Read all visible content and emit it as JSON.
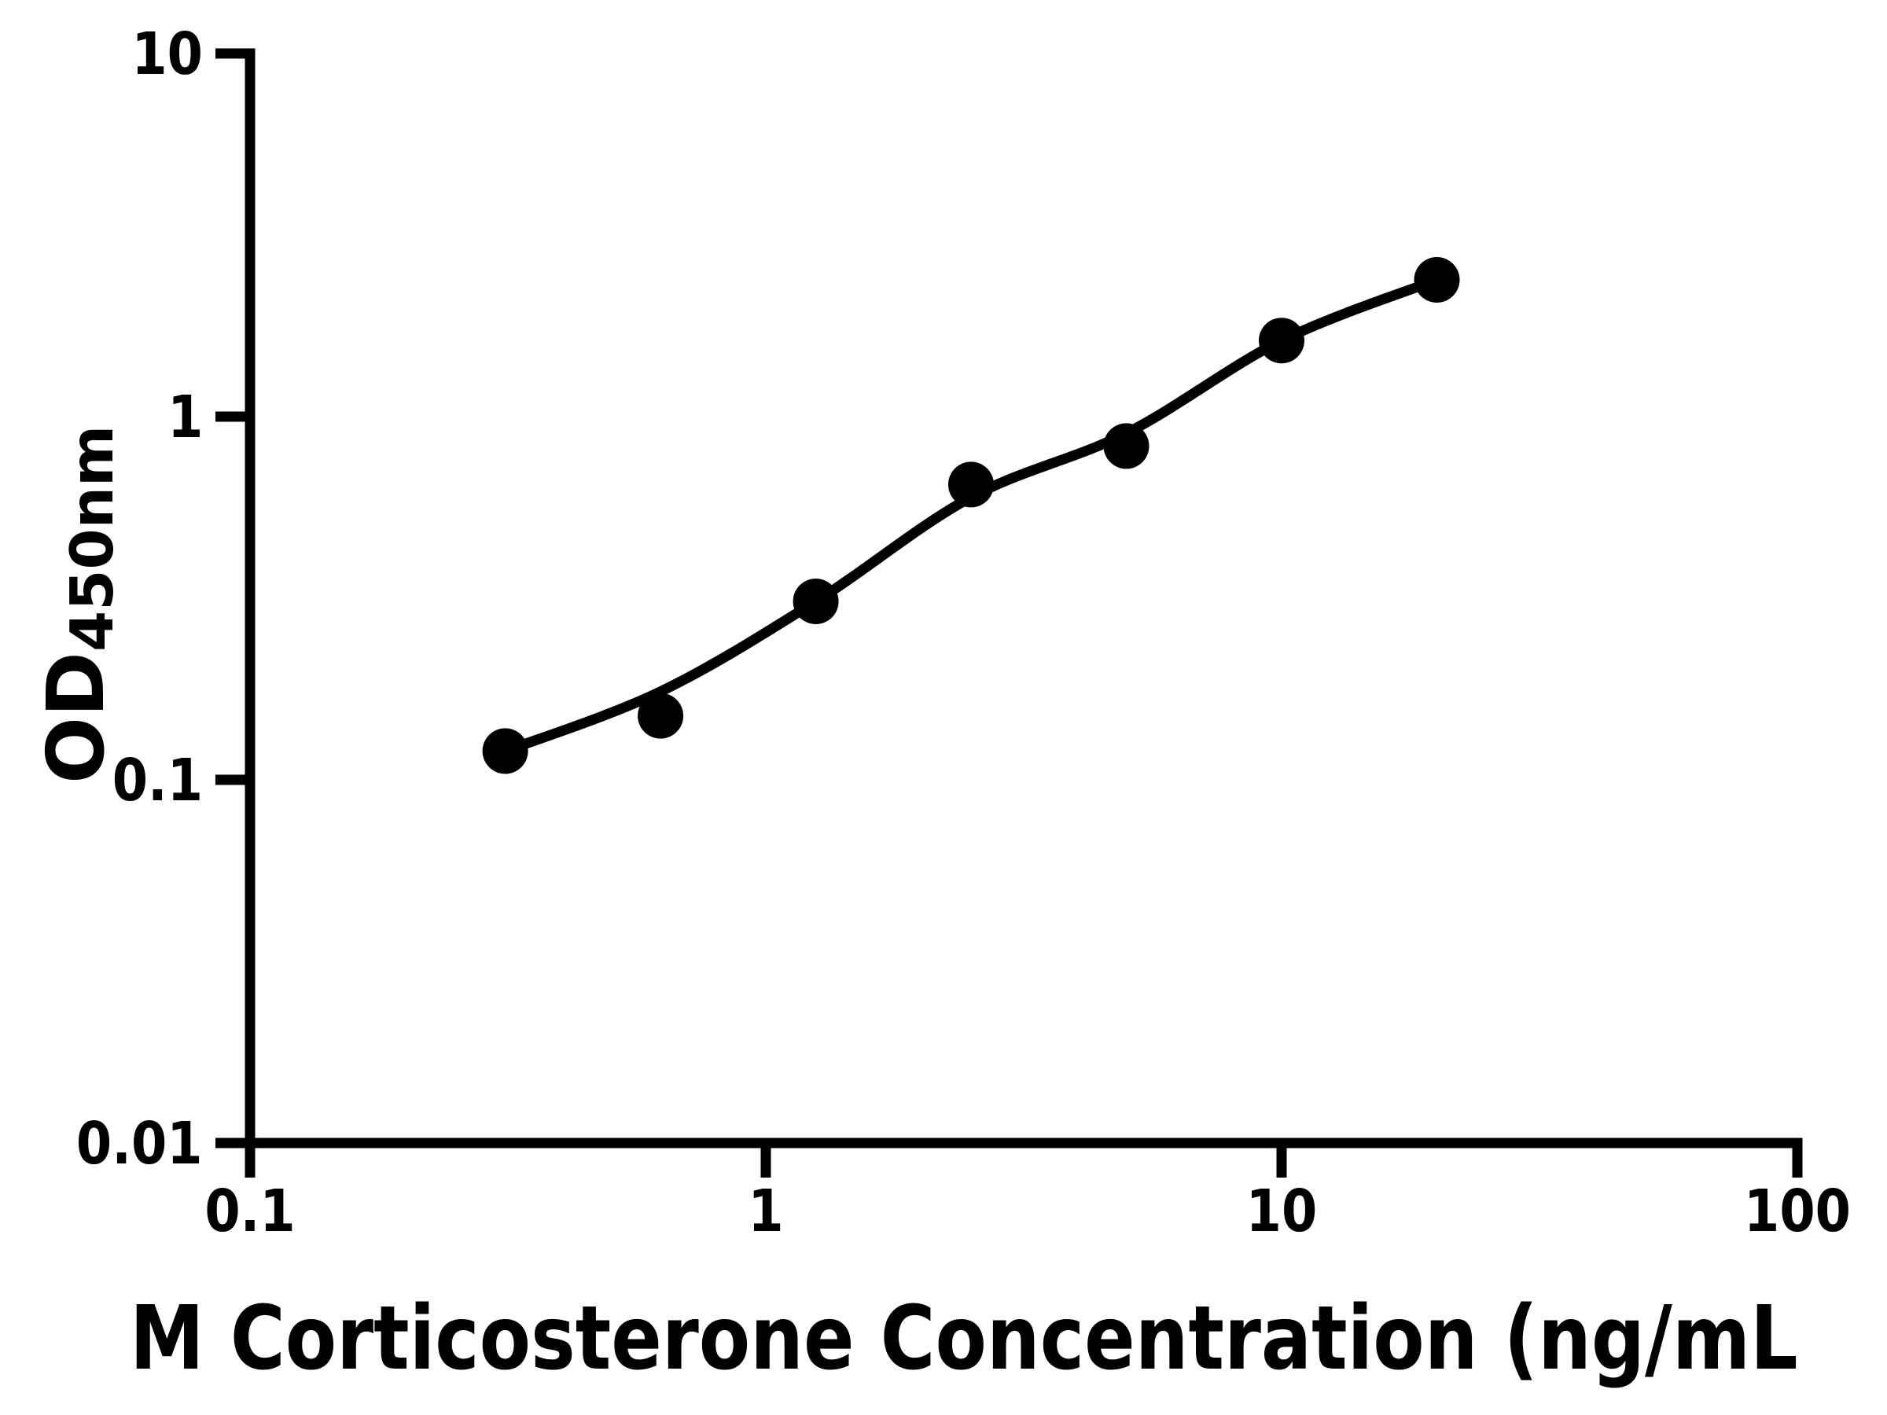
{
  "figure": {
    "background": "#ffffff",
    "ink": "#000000"
  },
  "chart_data": {
    "type": "scatter",
    "title": "",
    "xlabel": "M Corticosterone Concentration (ng/mL",
    "ylabel_main": "OD",
    "ylabel_sub": "450nm",
    "x_scale": "log",
    "y_scale": "log",
    "xlim": [
      0.1,
      100
    ],
    "ylim": [
      0.01,
      10
    ],
    "grid": false,
    "legend": "none",
    "x_ticks": [
      {
        "value": 0.1,
        "label": "0.1"
      },
      {
        "value": 1,
        "label": "1"
      },
      {
        "value": 10,
        "label": "10"
      },
      {
        "value": 100,
        "label": "100"
      }
    ],
    "y_ticks": [
      {
        "value": 0.01,
        "label": "0.01"
      },
      {
        "value": 0.1,
        "label": "0.1"
      },
      {
        "value": 1,
        "label": "1"
      },
      {
        "value": 10,
        "label": "10"
      }
    ],
    "series": [
      {
        "name": "standard-points",
        "type": "scatter",
        "marker": "circle",
        "color": "#000000",
        "points": [
          [
            0.3125,
            0.12
          ],
          [
            0.625,
            0.15
          ],
          [
            1.25,
            0.31
          ],
          [
            2.5,
            0.65
          ],
          [
            5,
            0.83
          ],
          [
            10,
            1.62
          ],
          [
            20,
            2.38
          ]
        ]
      },
      {
        "name": "fit-line",
        "type": "line",
        "color": "#000000",
        "points": [
          [
            0.3125,
            0.12
          ],
          [
            0.625,
            0.175
          ],
          [
            1.25,
            0.31
          ],
          [
            2.5,
            0.6
          ],
          [
            5,
            0.9
          ],
          [
            10,
            1.62
          ],
          [
            20,
            2.38
          ]
        ]
      }
    ]
  }
}
